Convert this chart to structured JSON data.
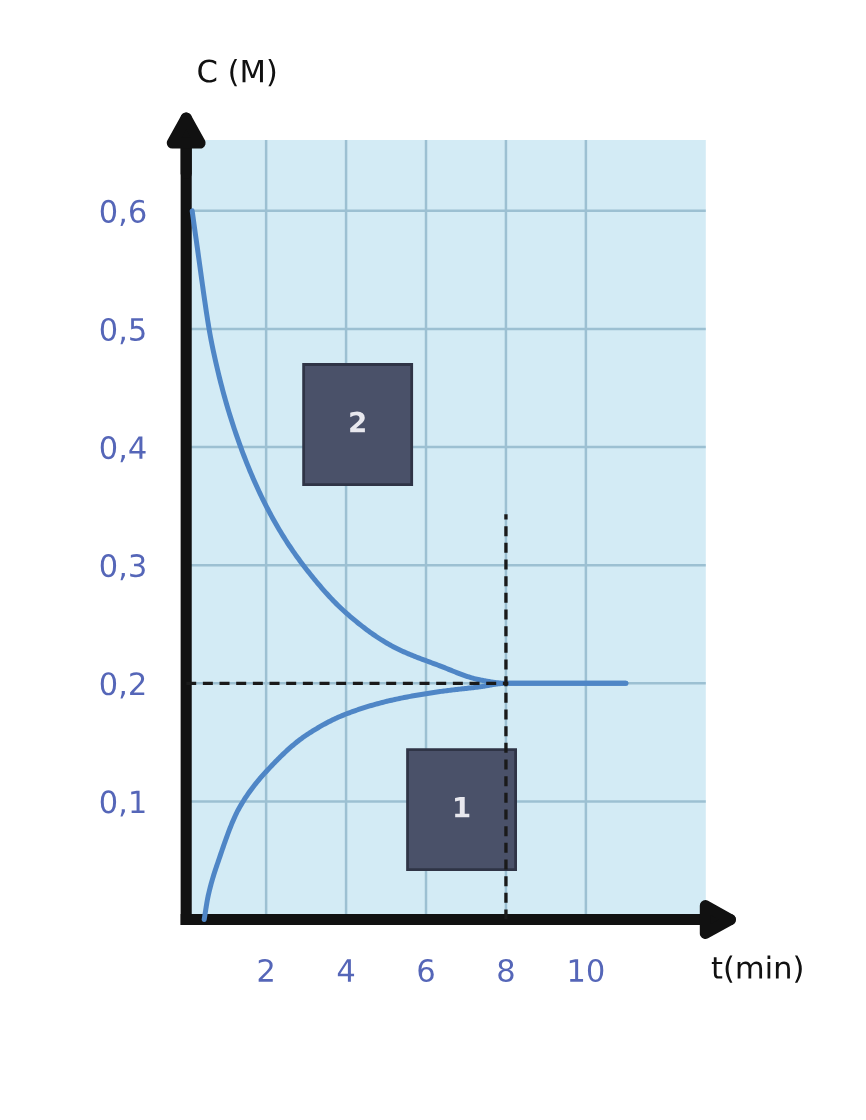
{
  "chart_data": {
    "type": "line",
    "xlabel": "t(min)",
    "ylabel": "C (M)",
    "series": [
      {
        "color": "#4f86c6",
        "x": [
          0.45,
          0.55,
          0.82,
          1.32,
          2.16,
          3.0,
          4.0,
          5.18,
          6.35,
          7.34,
          8.0,
          9.0,
          10.0,
          11.0
        ],
        "values": [
          0.0,
          0.02,
          0.051,
          0.094,
          0.131,
          0.156,
          0.174,
          0.186,
          0.193,
          0.197,
          0.2,
          0.2,
          0.2,
          0.2
        ]
      },
      {
        "color": "#4f86c6",
        "x": [
          0.15,
          0.24,
          0.65,
          1.31,
          2.16,
          3.02,
          4.02,
          5.18,
          6.33,
          7.34,
          8.0,
          9.0,
          10.0,
          11.0
        ],
        "values": [
          0.6,
          0.578,
          0.486,
          0.405,
          0.34,
          0.296,
          0.259,
          0.231,
          0.215,
          0.203,
          0.2,
          0.2,
          0.2,
          0.2
        ]
      }
    ],
    "annotations": [
      "2",
      "1"
    ],
    "xlim": [
      0,
      13
    ],
    "ylim": [
      0,
      0.66
    ],
    "xticks": [
      2,
      4,
      6,
      8,
      10
    ],
    "yticks": [
      {
        "value": 0.1,
        "label": "0,1"
      },
      {
        "value": 0.2,
        "label": "0,2"
      },
      {
        "value": 0.3,
        "label": "0,3"
      },
      {
        "value": 0.4,
        "label": "0,4"
      },
      {
        "value": 0.5,
        "label": "0,5"
      },
      {
        "value": 0.6,
        "label": "0,6"
      }
    ],
    "grid": true,
    "ref_lines": [
      {
        "axis": "x",
        "value": 8,
        "color": "#1a1a1a",
        "line_style": "dashed"
      },
      {
        "axis": "y",
        "value": 0.2,
        "color": "#1a1a1a",
        "line_style": "dashed"
      }
    ]
  }
}
